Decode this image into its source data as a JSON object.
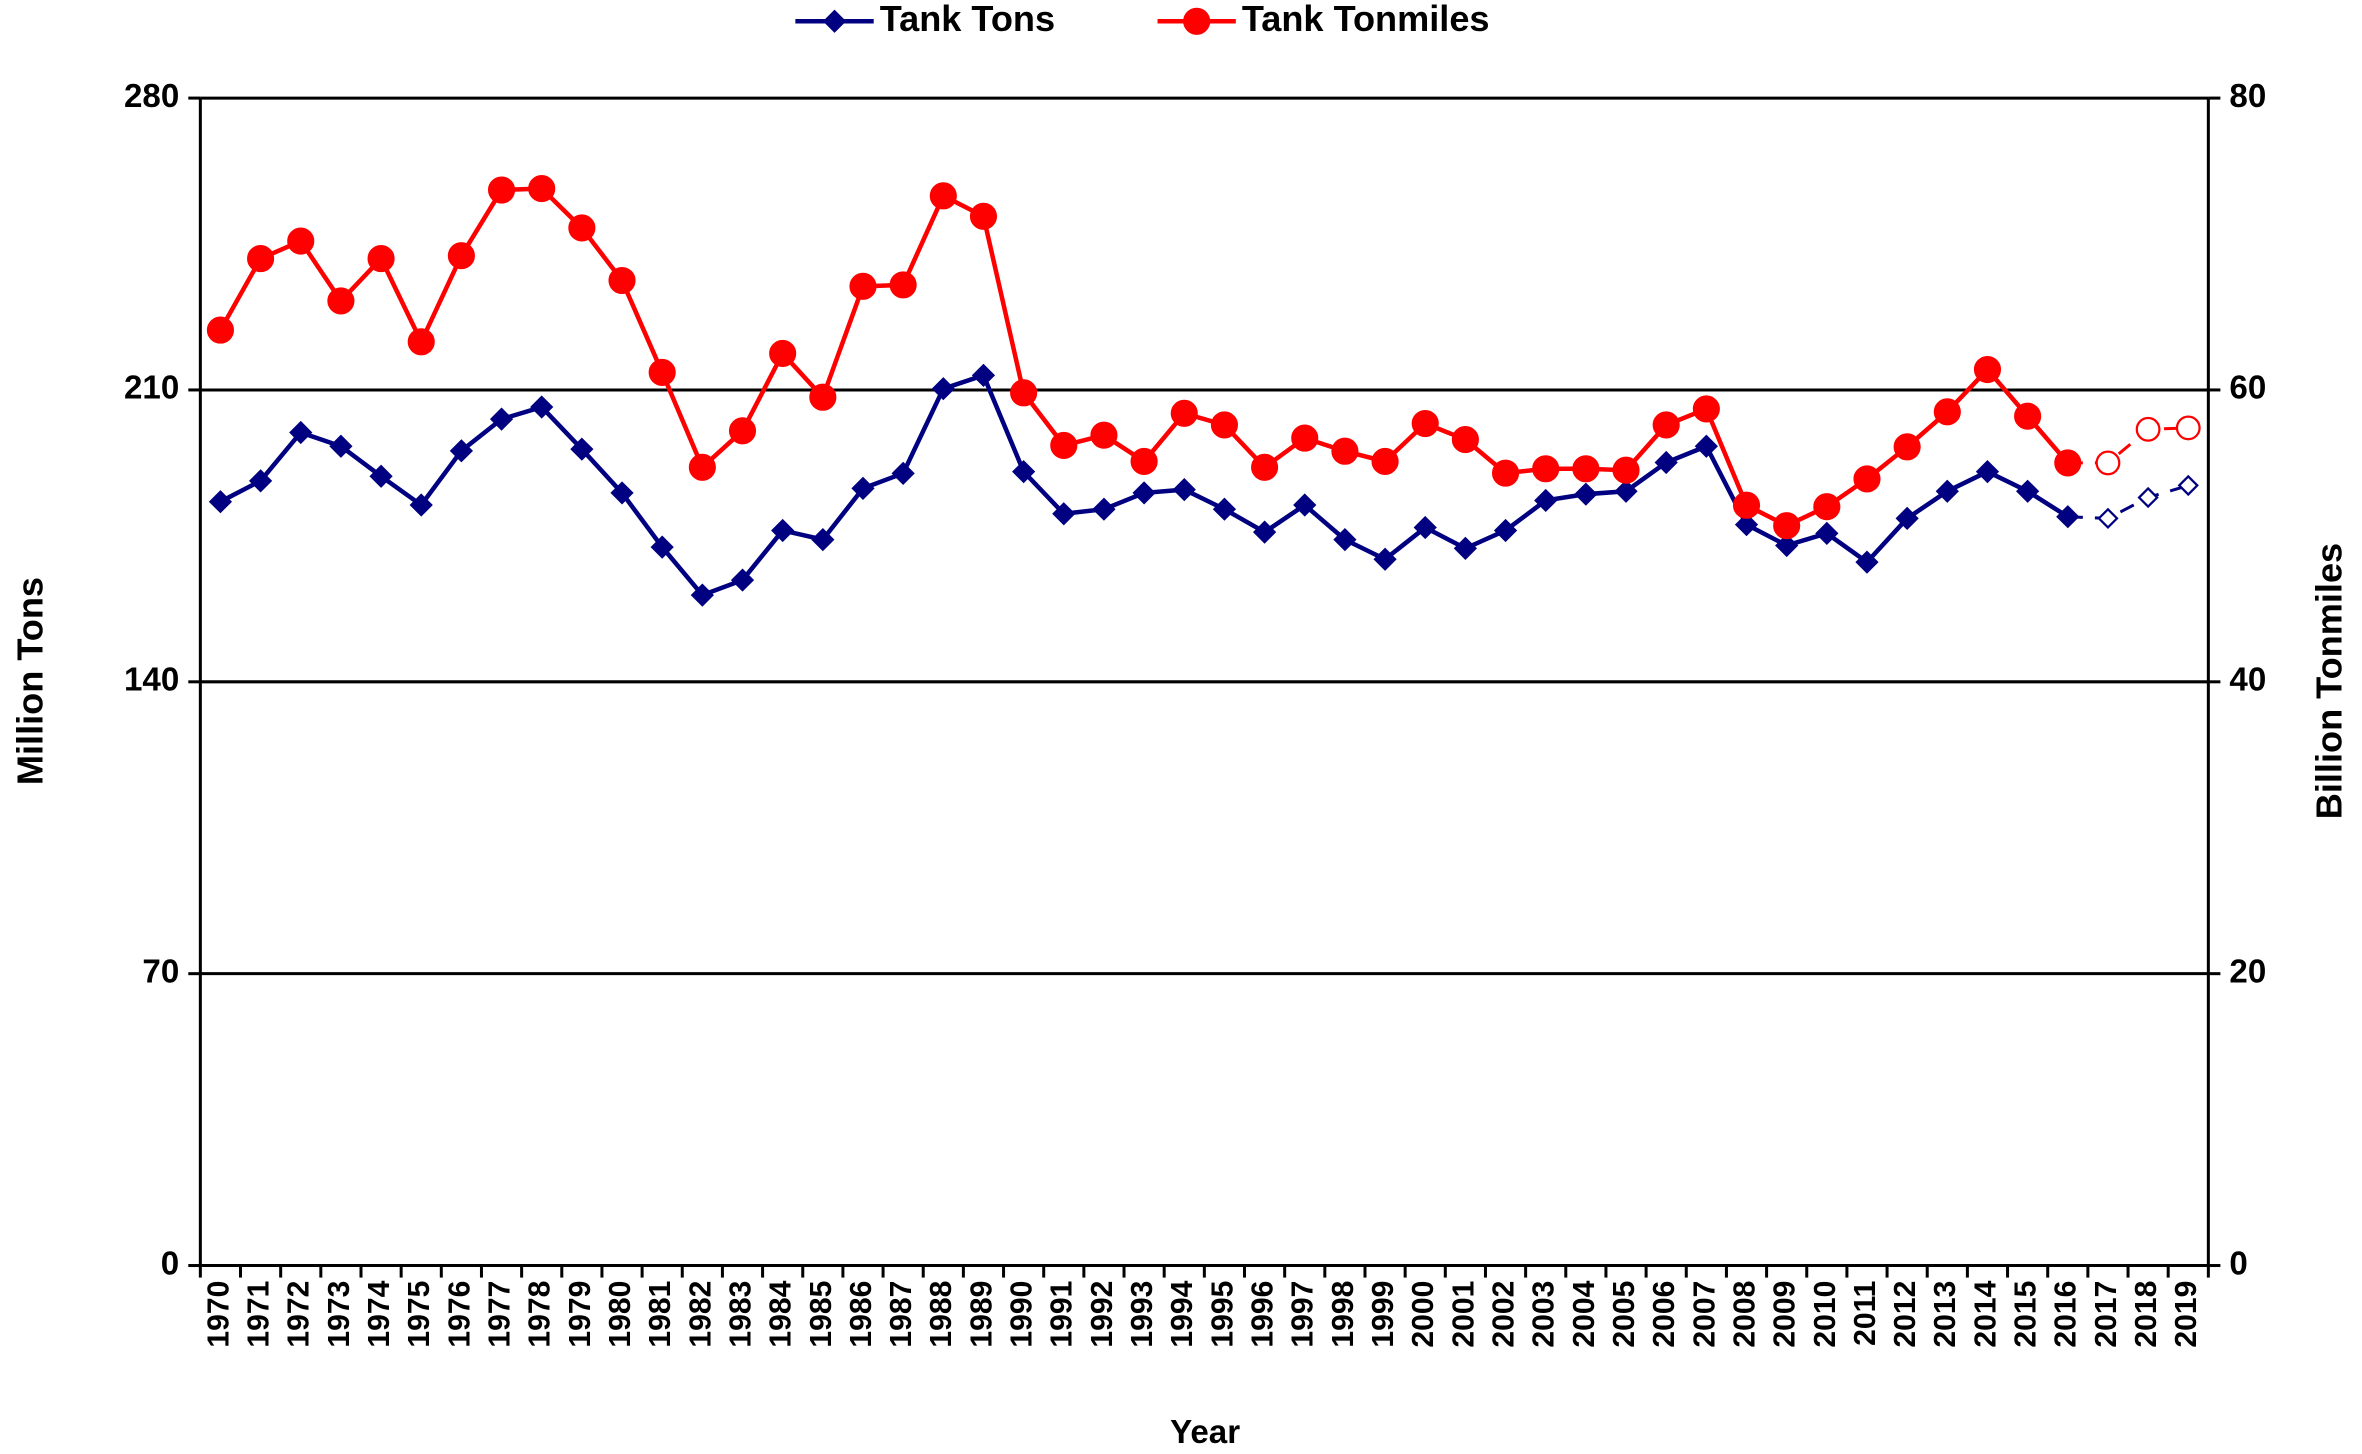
{
  "chart_data": {
    "type": "line",
    "xlabel": "Year",
    "ylabel": "Million Tons",
    "y2label": "Billion Tonmiles",
    "categories": [
      "1970",
      "1971",
      "1972",
      "1973",
      "1974",
      "1975",
      "1976",
      "1977",
      "1978",
      "1979",
      "1980",
      "1981",
      "1982",
      "1983",
      "1984",
      "1985",
      "1986",
      "1987",
      "1988",
      "1989",
      "1990",
      "1991",
      "1992",
      "1993",
      "1994",
      "1995",
      "1996",
      "1997",
      "1998",
      "1999",
      "2000",
      "2001",
      "2002",
      "2003",
      "2004",
      "2005",
      "2006",
      "2007",
      "2008",
      "2009",
      "2010",
      "2011",
      "2012",
      "2013",
      "2014",
      "2015",
      "2016",
      "2017",
      "2018",
      "2019"
    ],
    "projected_from": "2017",
    "series": [
      {
        "name": "Tank Tons",
        "color": "#000080",
        "marker": "diamond",
        "axis": "y",
        "values": [
          183.2,
          188.2,
          199.8,
          196.5,
          189.3,
          182.4,
          195.4,
          203.0,
          205.9,
          195.8,
          185.3,
          172.3,
          160.8,
          164.4,
          176.3,
          174.1,
          186.4,
          190.0,
          210.3,
          213.5,
          190.4,
          180.3,
          181.4,
          185.3,
          186.1,
          181.4,
          175.9,
          182.4,
          174.1,
          169.4,
          177.0,
          172.0,
          176.3,
          183.5,
          185.0,
          185.7,
          192.6,
          196.5,
          177.7,
          172.7,
          175.6,
          168.7,
          179.2,
          185.7,
          190.4,
          185.7,
          179.6,
          179.2,
          184.2,
          187.1
        ]
      },
      {
        "name": "Tank Tonmiles",
        "color": "#ff0000",
        "marker": "circle",
        "axis": "y2",
        "values": [
          64.1,
          69.0,
          70.2,
          66.1,
          69.0,
          63.3,
          69.2,
          73.7,
          73.8,
          71.1,
          67.5,
          61.2,
          54.7,
          57.2,
          62.5,
          59.5,
          67.1,
          67.2,
          73.3,
          71.9,
          59.8,
          56.2,
          56.9,
          55.1,
          58.4,
          57.6,
          54.7,
          56.7,
          55.8,
          55.1,
          57.7,
          56.6,
          54.3,
          54.6,
          54.6,
          54.5,
          57.6,
          58.7,
          52.1,
          50.7,
          52.0,
          53.9,
          56.1,
          58.5,
          61.4,
          58.2,
          55.0,
          55.0,
          57.3,
          57.4
        ]
      }
    ],
    "ylim": [
      0,
      280
    ],
    "yticks": [
      0,
      70,
      140,
      210,
      280
    ],
    "y2lim": [
      0,
      80
    ],
    "y2ticks": [
      0,
      20,
      40,
      60,
      80
    ],
    "grid": true,
    "legend": "top"
  }
}
